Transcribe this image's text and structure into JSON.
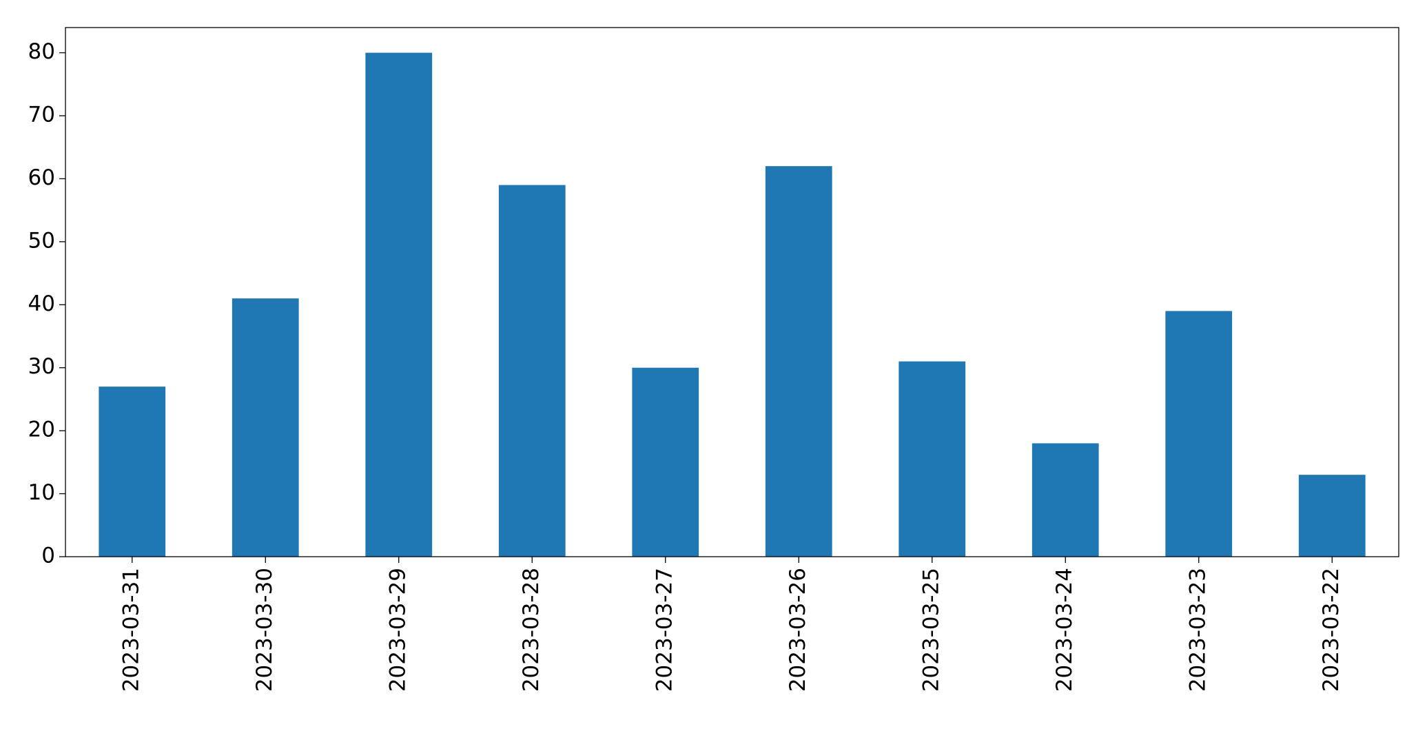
{
  "chart_data": {
    "type": "bar",
    "categories": [
      "2023-03-31",
      "2023-03-30",
      "2023-03-29",
      "2023-03-28",
      "2023-03-27",
      "2023-03-26",
      "2023-03-25",
      "2023-03-24",
      "2023-03-23",
      "2023-03-22"
    ],
    "values": [
      27,
      41,
      80,
      59,
      30,
      62,
      31,
      18,
      39,
      13
    ],
    "color": "#1f77b4",
    "ylim": [
      0,
      84
    ],
    "yticks": [
      0,
      10,
      20,
      30,
      40,
      50,
      60,
      70,
      80
    ],
    "grid": false
  }
}
